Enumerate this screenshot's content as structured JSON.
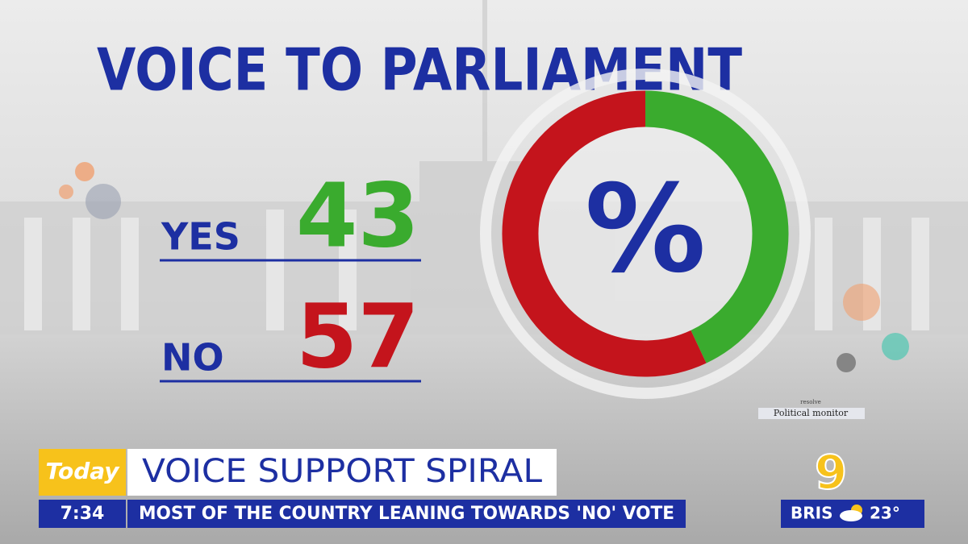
{
  "chart_data": {
    "type": "donut",
    "title": "VOICE TO PARLIAMENT",
    "categories": [
      "YES",
      "NO"
    ],
    "values": [
      43,
      57
    ],
    "colors": [
      "#3aab2e",
      "#c4141c"
    ],
    "center_label": "%"
  },
  "source": {
    "line1": "resolve",
    "line2": "Political monitor"
  },
  "lower_third": {
    "brand": "Today",
    "time": "7:34",
    "headline": "VOICE SUPPORT SPIRAL",
    "subheadline": "MOST OF THE COUNTRY LEANING TOWARDS 'NO' VOTE",
    "network": "9",
    "city": "BRIS",
    "temperature": "23°"
  }
}
